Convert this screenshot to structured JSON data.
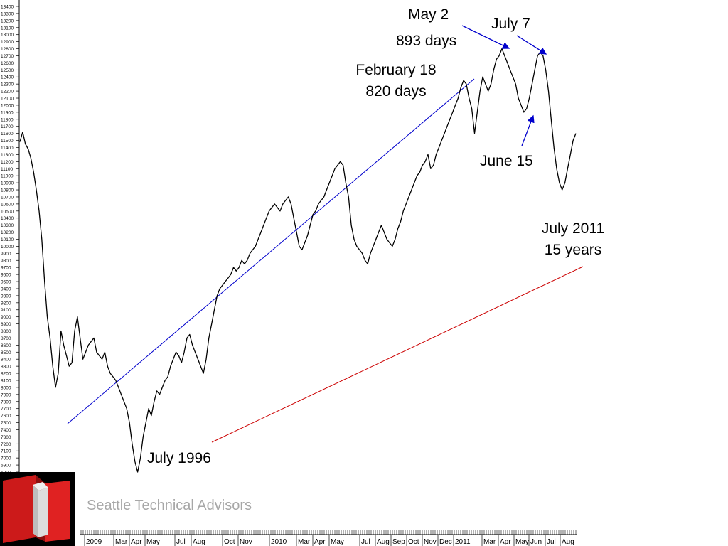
{
  "company": "Seattle Technical Advisors",
  "annotations": {
    "may2": "May 2",
    "may2_days": "893 days",
    "july7": "July 7",
    "feb18": "February 18",
    "feb18_days": "820 days",
    "june15": "June 15",
    "july2011": "July 2011",
    "july2011_years": "15 years",
    "july1996": "July 1996"
  },
  "colors": {
    "price": "#000000",
    "trend_blue": "#0000cc",
    "trend_red": "#cc0000",
    "arrow": "#0000cc",
    "logo_red": "#cc1a1a",
    "logo_gray": "#cccccc"
  },
  "chart_data": {
    "type": "line",
    "title": "",
    "xlabel": "",
    "ylabel": "",
    "ylim": [
      6700,
      13400
    ],
    "grid": false,
    "yticks": [
      6800,
      6900,
      7000,
      7100,
      7200,
      7300,
      7400,
      7500,
      7600,
      7700,
      7800,
      7900,
      8000,
      8100,
      8200,
      8300,
      8400,
      8500,
      8600,
      8700,
      8800,
      8900,
      9000,
      9100,
      9200,
      9300,
      9400,
      9500,
      9600,
      9700,
      9800,
      9900,
      10000,
      10100,
      10200,
      10300,
      10400,
      10500,
      10600,
      10700,
      10800,
      10900,
      11000,
      11100,
      11200,
      11300,
      11400,
      11500,
      11600,
      11700,
      11800,
      11900,
      12000,
      12100,
      12200,
      12300,
      12400,
      12500,
      12600,
      12700,
      12800,
      12900,
      13000,
      13100,
      13200,
      13300,
      13400
    ],
    "x_tick_labels": [
      "2009",
      "Mar",
      "Apr",
      "May",
      "Jul",
      "Aug",
      "Oct",
      "Nov",
      "2010",
      "Mar",
      "Apr",
      "May",
      "Jul",
      "Aug",
      "Sep",
      "Oct",
      "Nov",
      "Dec",
      "2011",
      "Mar",
      "Apr",
      "May",
      "Jun",
      "Jul",
      "Aug"
    ],
    "series": [
      {
        "values": [
          11480,
          11620,
          11450,
          11380,
          11250,
          11050,
          10800,
          10500,
          10100,
          9500,
          9000,
          8700,
          8300,
          8000,
          8200,
          8800,
          8600,
          8450,
          8300,
          8350,
          8800,
          9000,
          8700,
          8400,
          8500,
          8600,
          8650,
          8700,
          8500,
          8450,
          8400,
          8500,
          8300,
          8200,
          8150,
          8100,
          8000,
          7900,
          7800,
          7700,
          7500,
          7200,
          6950,
          6800,
          7000,
          7300,
          7500,
          7700,
          7600,
          7800,
          7950,
          7900,
          8000,
          8100,
          8150,
          8300,
          8400,
          8500,
          8450,
          8350,
          8500,
          8700,
          8750,
          8600,
          8500,
          8400,
          8300,
          8200,
          8400,
          8700,
          8900,
          9100,
          9300,
          9400,
          9450,
          9500,
          9550,
          9600,
          9700,
          9650,
          9700,
          9800,
          9750,
          9800,
          9900,
          9950,
          10000,
          10100,
          10200,
          10300,
          10400,
          10500,
          10550,
          10600,
          10550,
          10500,
          10600,
          10650,
          10700,
          10600,
          10400,
          10200,
          10000,
          9950,
          10050,
          10150,
          10300,
          10450,
          10500,
          10600,
          10650,
          10700,
          10800,
          10900,
          11000,
          11100,
          11150,
          11200,
          11150,
          10900,
          10700,
          10300,
          10100,
          10000,
          9950,
          9900,
          9800,
          9750,
          9900,
          10000,
          10100,
          10200,
          10300,
          10200,
          10100,
          10050,
          10000,
          10100,
          10250,
          10350,
          10500,
          10600,
          10700,
          10800,
          10900,
          11000,
          11050,
          11150,
          11200,
          11300,
          11100,
          11150,
          11300,
          11400,
          11500,
          11600,
          11700,
          11800,
          11900,
          12000,
          12100,
          12250,
          12350,
          12300,
          12100,
          11950,
          11600,
          11900,
          12200,
          12400,
          12300,
          12200,
          12300,
          12500,
          12650,
          12700,
          12800,
          12700,
          12600,
          12500,
          12400,
          12300,
          12100,
          12000,
          11900,
          11950,
          12100,
          12300,
          12500,
          12700,
          12750,
          12700,
          12500,
          12200,
          11800,
          11400,
          11100,
          10900,
          10800,
          10900,
          11100,
          11300,
          11500,
          11600
        ]
      }
    ]
  }
}
